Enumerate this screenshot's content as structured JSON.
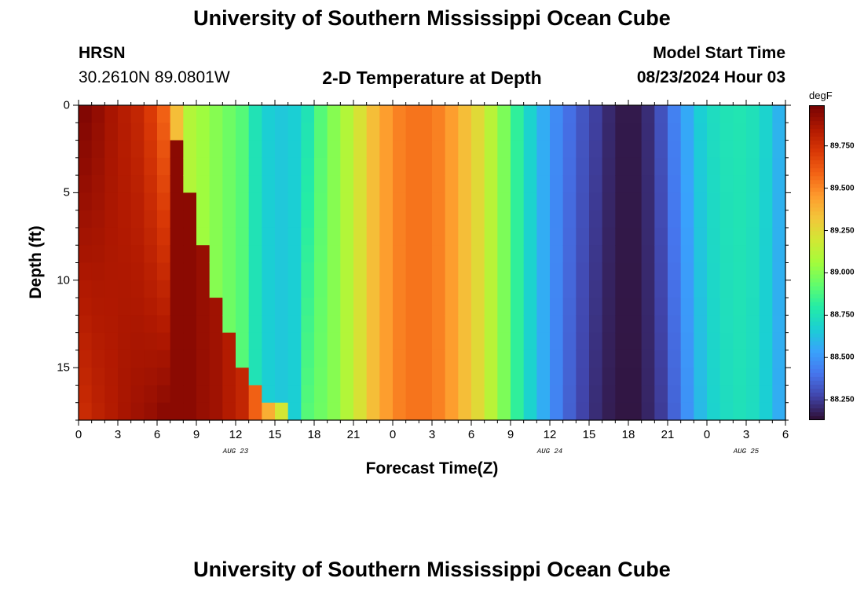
{
  "header": {
    "main_title": "University of Southern Mississippi Ocean Cube",
    "station": "HRSN",
    "coordinates": "30.2610N  89.0801W",
    "plot_title": "2-D Temperature at Depth",
    "model_label": "Model Start Time",
    "model_time": "08/23/2024 Hour 03"
  },
  "footer": {
    "main_title": "University of Southern Mississippi Ocean Cube"
  },
  "colors": {
    "palette": [
      "#30123b",
      "#4145ab",
      "#4675ed",
      "#39a2fc",
      "#1bcfd4",
      "#24eca6",
      "#61fc6c",
      "#a4fc3b",
      "#d1e834",
      "#f3c63a",
      "#fe9b2d",
      "#f36315",
      "#d93806",
      "#b11901",
      "#7a0403"
    ]
  },
  "chart_data": {
    "type": "heatmap",
    "title": "2-D Temperature at Depth",
    "xlabel": "Forecast Time(Z)",
    "ylabel": "Depth (ft)",
    "x_ticks": [
      "0",
      "3",
      "6",
      "9",
      "12",
      "15",
      "18",
      "21",
      "0",
      "3",
      "6",
      "9",
      "12",
      "15",
      "18",
      "21",
      "0",
      "3",
      "6"
    ],
    "x_tick_hours": [
      0,
      3,
      6,
      9,
      12,
      15,
      18,
      21,
      24,
      27,
      30,
      33,
      36,
      39,
      42,
      45,
      48,
      51,
      54
    ],
    "date_labels": [
      {
        "text": "AUG 23",
        "hour": 12
      },
      {
        "text": "AUG 24",
        "hour": 36
      },
      {
        "text": "AUG 25",
        "hour": 51
      }
    ],
    "xlim": [
      0,
      54
    ],
    "y_ticks": [
      "0",
      "5",
      "10",
      "15"
    ],
    "y_tick_values": [
      0,
      5,
      10,
      15
    ],
    "ylim": [
      0,
      18
    ],
    "colorbar_unit": "degF",
    "colorbar_ticks": [
      "88.250",
      "88.500",
      "88.750",
      "89.000",
      "89.250",
      "89.500",
      "89.750"
    ],
    "colorbar_tick_values": [
      88.25,
      88.5,
      88.75,
      89.0,
      89.25,
      89.5,
      89.75
    ],
    "vmin": 88.13,
    "vmax": 89.99,
    "time_step_hours": 1,
    "depth_step_ft": 1,
    "columns": [
      {
        "hour": 0,
        "surface": 89.97,
        "bottom": 89.78,
        "front_depth": null
      },
      {
        "hour": 1,
        "surface": 89.93,
        "bottom": 89.82,
        "front_depth": null
      },
      {
        "hour": 2,
        "surface": 89.88,
        "bottom": 89.85,
        "front_depth": null
      },
      {
        "hour": 3,
        "surface": 89.84,
        "bottom": 89.88,
        "front_depth": null
      },
      {
        "hour": 4,
        "surface": 89.8,
        "bottom": 89.9,
        "front_depth": null
      },
      {
        "hour": 5,
        "surface": 89.72,
        "bottom": 89.92,
        "front_depth": null
      },
      {
        "hour": 6,
        "surface": 89.6,
        "bottom": 89.95,
        "front_depth": null
      },
      {
        "hour": 7,
        "surface": 89.35,
        "bottom": 89.95,
        "front_depth": 2
      },
      {
        "hour": 8,
        "surface": 89.1,
        "bottom": 89.95,
        "front_depth": 5
      },
      {
        "hour": 9,
        "surface": 89.05,
        "bottom": 89.92,
        "front_depth": 8
      },
      {
        "hour": 10,
        "surface": 89.0,
        "bottom": 89.9,
        "front_depth": 11
      },
      {
        "hour": 11,
        "surface": 88.95,
        "bottom": 89.85,
        "front_depth": 13
      },
      {
        "hour": 12,
        "surface": 88.9,
        "bottom": 89.8,
        "front_depth": 15
      },
      {
        "hour": 13,
        "surface": 88.75,
        "bottom": 89.6,
        "front_depth": 16
      },
      {
        "hour": 14,
        "surface": 88.66,
        "bottom": 89.4,
        "front_depth": 17
      },
      {
        "hour": 15,
        "surface": 88.64,
        "bottom": 89.2,
        "front_depth": 17
      },
      {
        "hour": 16,
        "surface": 88.66,
        "bottom": 89.0,
        "front_depth": 18
      },
      {
        "hour": 17,
        "surface": 88.75,
        "bottom": 88.9,
        "front_depth": null
      },
      {
        "hour": 18,
        "surface": 88.9,
        "bottom": 88.95,
        "front_depth": null
      },
      {
        "hour": 19,
        "surface": 89.0,
        "bottom": 89.0,
        "front_depth": null
      },
      {
        "hour": 20,
        "surface": 89.1,
        "bottom": 89.1,
        "front_depth": null
      },
      {
        "hour": 21,
        "surface": 89.22,
        "bottom": 89.22,
        "front_depth": null
      },
      {
        "hour": 22,
        "surface": 89.35,
        "bottom": 89.35,
        "front_depth": null
      },
      {
        "hour": 23,
        "surface": 89.45,
        "bottom": 89.45,
        "front_depth": null
      },
      {
        "hour": 24,
        "surface": 89.52,
        "bottom": 89.52,
        "front_depth": null
      },
      {
        "hour": 25,
        "surface": 89.55,
        "bottom": 89.55,
        "front_depth": null
      },
      {
        "hour": 26,
        "surface": 89.55,
        "bottom": 89.55,
        "front_depth": null
      },
      {
        "hour": 27,
        "surface": 89.52,
        "bottom": 89.52,
        "front_depth": null
      },
      {
        "hour": 28,
        "surface": 89.45,
        "bottom": 89.45,
        "front_depth": null
      },
      {
        "hour": 29,
        "surface": 89.35,
        "bottom": 89.35,
        "front_depth": null
      },
      {
        "hour": 30,
        "surface": 89.25,
        "bottom": 89.25,
        "front_depth": null
      },
      {
        "hour": 31,
        "surface": 89.12,
        "bottom": 89.12,
        "front_depth": null
      },
      {
        "hour": 32,
        "surface": 88.98,
        "bottom": 88.98,
        "front_depth": null
      },
      {
        "hour": 33,
        "surface": 88.82,
        "bottom": 88.82,
        "front_depth": null
      },
      {
        "hour": 34,
        "surface": 88.68,
        "bottom": 88.68,
        "front_depth": null
      },
      {
        "hour": 35,
        "surface": 88.56,
        "bottom": 88.56,
        "front_depth": null
      },
      {
        "hour": 36,
        "surface": 88.46,
        "bottom": 88.44,
        "front_depth": null
      },
      {
        "hour": 37,
        "surface": 88.38,
        "bottom": 88.34,
        "front_depth": null
      },
      {
        "hour": 38,
        "surface": 88.31,
        "bottom": 88.26,
        "front_depth": null
      },
      {
        "hour": 39,
        "surface": 88.25,
        "bottom": 88.2,
        "front_depth": null
      },
      {
        "hour": 40,
        "surface": 88.19,
        "bottom": 88.16,
        "front_depth": null
      },
      {
        "hour": 41,
        "surface": 88.15,
        "bottom": 88.14,
        "front_depth": null
      },
      {
        "hour": 42,
        "surface": 88.15,
        "bottom": 88.14,
        "front_depth": null
      },
      {
        "hour": 43,
        "surface": 88.2,
        "bottom": 88.18,
        "front_depth": null
      },
      {
        "hour": 44,
        "surface": 88.3,
        "bottom": 88.24,
        "front_depth": null
      },
      {
        "hour": 45,
        "surface": 88.43,
        "bottom": 88.35,
        "front_depth": null
      },
      {
        "hour": 46,
        "surface": 88.55,
        "bottom": 88.48,
        "front_depth": null
      },
      {
        "hour": 47,
        "surface": 88.66,
        "bottom": 88.6,
        "front_depth": null
      },
      {
        "hour": 48,
        "surface": 88.72,
        "bottom": 88.68,
        "front_depth": null
      },
      {
        "hour": 49,
        "surface": 88.75,
        "bottom": 88.72,
        "front_depth": null
      },
      {
        "hour": 50,
        "surface": 88.76,
        "bottom": 88.74,
        "front_depth": null
      },
      {
        "hour": 51,
        "surface": 88.74,
        "bottom": 88.72,
        "front_depth": null
      },
      {
        "hour": 52,
        "surface": 88.68,
        "bottom": 88.66,
        "front_depth": null
      },
      {
        "hour": 53,
        "surface": 88.58,
        "bottom": 88.56,
        "front_depth": null
      }
    ]
  }
}
